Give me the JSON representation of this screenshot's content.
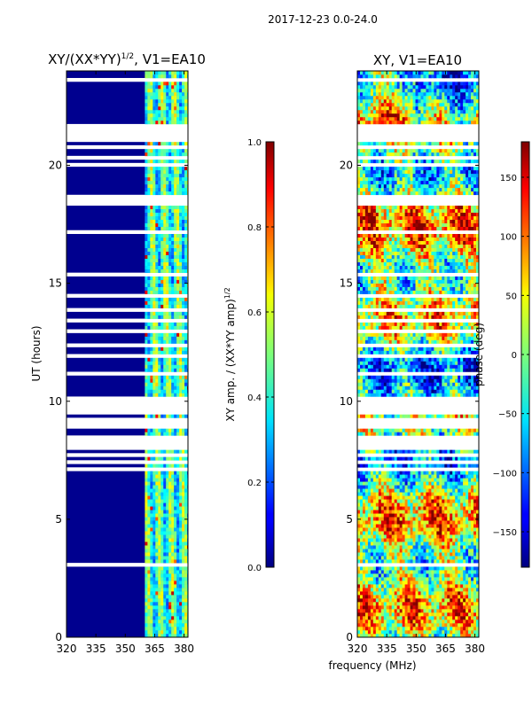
{
  "suptitle": "2017-12-23 0.0-24.0",
  "chart_data": [
    {
      "type": "heatmap",
      "title": "XY/(XX*YY)^1/2, V1=EA10",
      "title_main": "XY/(XX*YY)",
      "title_exp": "1/2",
      "title_tail": ", V1=EA10",
      "xlabel": "",
      "ylabel": "UT (hours)",
      "xlim": [
        320,
        382
      ],
      "ylim": [
        0,
        24
      ],
      "xticks": [
        "320",
        "335",
        "350",
        "365",
        "380"
      ],
      "xtick_values": [
        320,
        335,
        350,
        365,
        380
      ],
      "yticks": [
        "0",
        "5",
        "10",
        "15",
        "20"
      ],
      "ytick_values": [
        0,
        5,
        10,
        15,
        20
      ],
      "band_start_mhz": 360,
      "colorbar": {
        "label": "XY amp. / (XX*YY amp)^1/2",
        "label_main": "XY amp. / (XX*YY amp)",
        "label_exp": "1/2",
        "range": [
          0,
          1
        ],
        "ticks": [
          "0.0",
          "0.2",
          "0.4",
          "0.6",
          "0.8",
          "1.0"
        ],
        "tick_values": [
          0,
          0.2,
          0.4,
          0.6,
          0.8,
          1.0
        ]
      }
    },
    {
      "type": "heatmap",
      "title": "XY, V1=EA10",
      "xlabel": "frequency (MHz)",
      "ylabel": "",
      "xlim": [
        320,
        382
      ],
      "ylim": [
        0,
        24
      ],
      "xticks": [
        "320",
        "335",
        "350",
        "365",
        "380"
      ],
      "xtick_values": [
        320,
        335,
        350,
        365,
        380
      ],
      "yticks": [
        "0",
        "5",
        "10",
        "15",
        "20"
      ],
      "ytick_values": [
        0,
        5,
        10,
        15,
        20
      ],
      "colorbar": {
        "label": "phase (deg)",
        "range": [
          -180,
          180
        ],
        "ticks": [
          "−150",
          "−100",
          "−50",
          "0",
          "50",
          "100",
          "150"
        ],
        "tick_values": [
          -150,
          -100,
          -50,
          0,
          50,
          100,
          150
        ]
      }
    }
  ]
}
